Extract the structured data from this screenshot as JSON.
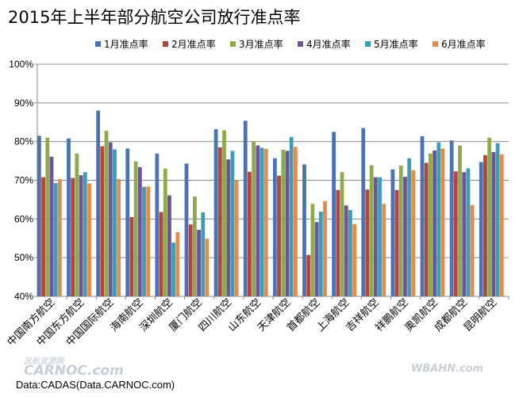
{
  "title": "2015年上半年部分航空公司放行准点率",
  "source": "Data:CADAS(Data.CARNOC.com)",
  "watermarks": {
    "left_top": "民航资源网",
    "left": "CARNOC.com",
    "right": "WBAHN.com"
  },
  "chart_data": {
    "type": "bar",
    "title": "2015年上半年部分航空公司放行准点率",
    "xlabel": "",
    "ylabel": "",
    "ylim": [
      40,
      100
    ],
    "yticks": [
      40,
      50,
      60,
      70,
      80,
      90,
      100
    ],
    "ytick_labels": [
      "40%",
      "50%",
      "60%",
      "70%",
      "80%",
      "90%",
      "100%"
    ],
    "grid": true,
    "legend_position": "top",
    "categories": [
      "中国南方航空",
      "中国东方航空",
      "中国国际航空",
      "海南航空",
      "深圳航空",
      "厦门航空",
      "四川航空",
      "山东航空",
      "天津航空",
      "首都航空",
      "上海航空",
      "吉祥航空",
      "祥鹏航空",
      "奥凯航空",
      "成都航空",
      "昆明航空"
    ],
    "series": [
      {
        "name": "1月准点率",
        "color": "#4a73b3",
        "values": [
          81.5,
          80.8,
          88.0,
          78.2,
          76.9,
          74.3,
          83.2,
          85.4,
          75.7,
          74.1,
          82.5,
          83.5,
          72.8,
          81.4,
          80.3,
          74.7
        ]
      },
      {
        "name": "2月准点率",
        "color": "#b5443f",
        "values": [
          70.8,
          70.6,
          78.8,
          60.5,
          61.8,
          58.6,
          78.5,
          72.2,
          71.2,
          50.7,
          67.5,
          67.6,
          67.5,
          74.5,
          72.3,
          76.5
        ]
      },
      {
        "name": "3月准点率",
        "color": "#8eab4c",
        "values": [
          81.0,
          76.9,
          82.8,
          74.9,
          73.0,
          65.8,
          82.9,
          80.0,
          77.9,
          63.9,
          72.1,
          73.9,
          73.8,
          76.9,
          79.0,
          81.0
        ]
      },
      {
        "name": "4月准点率",
        "color": "#6e5396",
        "values": [
          76.1,
          71.3,
          79.8,
          73.4,
          66.1,
          57.2,
          75.4,
          79.0,
          77.6,
          59.2,
          63.5,
          70.8,
          70.9,
          77.7,
          72.1,
          77.3
        ]
      },
      {
        "name": "5月准点率",
        "color": "#3d9db8",
        "values": [
          69.3,
          72.1,
          78.0,
          68.3,
          53.9,
          61.7,
          77.6,
          78.4,
          81.2,
          61.9,
          62.3,
          70.8,
          75.7,
          79.8,
          73.1,
          79.6
        ]
      },
      {
        "name": "6月准点率",
        "color": "#e68b45",
        "values": [
          70.3,
          69.2,
          70.3,
          68.4,
          56.6,
          54.9,
          70.0,
          78.1,
          78.6,
          64.6,
          58.7,
          63.9,
          72.6,
          78.2,
          63.6,
          76.7
        ]
      }
    ]
  }
}
